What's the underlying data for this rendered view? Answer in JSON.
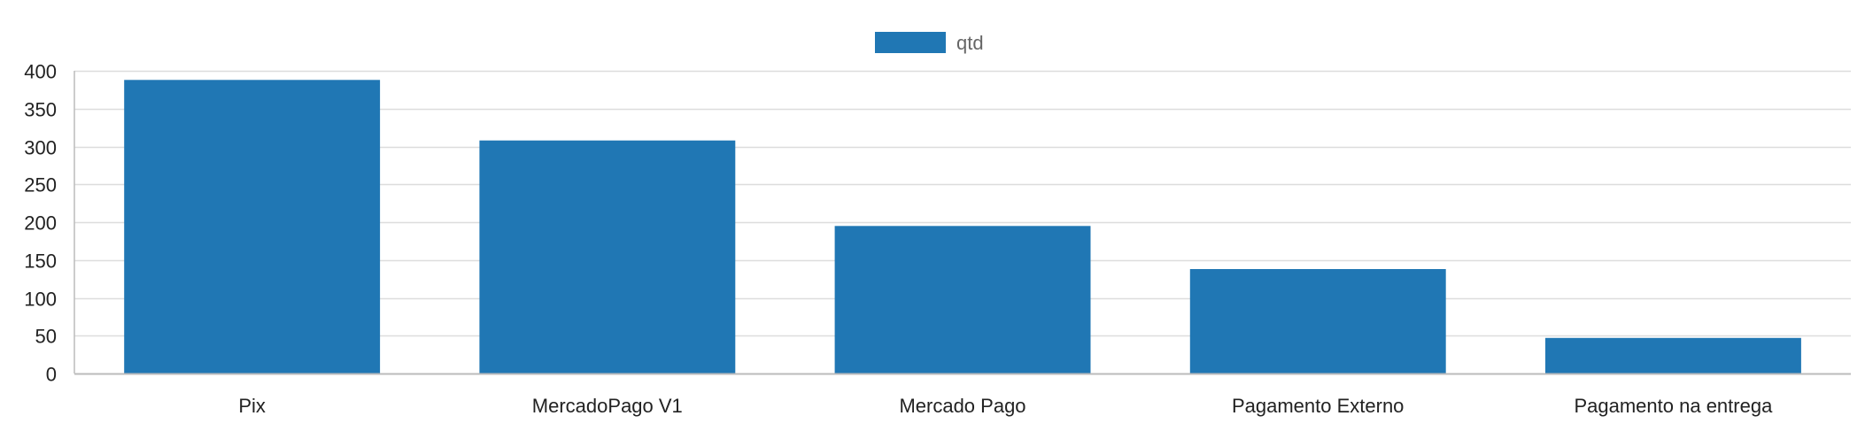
{
  "chart_data": {
    "type": "bar",
    "categories": [
      "Pix",
      "MercadoPago V1",
      "Mercado Pago",
      "Pagamento Externo",
      "Pagamento na entrega"
    ],
    "series": [
      {
        "name": "qtd",
        "values": [
          388,
          308,
          195,
          138,
          47
        ],
        "color": "#2077b4"
      }
    ],
    "ylim": [
      0,
      400
    ],
    "yticks": [
      0,
      50,
      100,
      150,
      200,
      250,
      300,
      350,
      400
    ],
    "title": "",
    "xlabel": "",
    "ylabel": "",
    "grid": true,
    "legend_position": "top-center",
    "colors": {
      "grid": "#dddddd",
      "axis": "#bbbbbb",
      "tick_text": "#222222",
      "legend_text": "#666666"
    }
  }
}
